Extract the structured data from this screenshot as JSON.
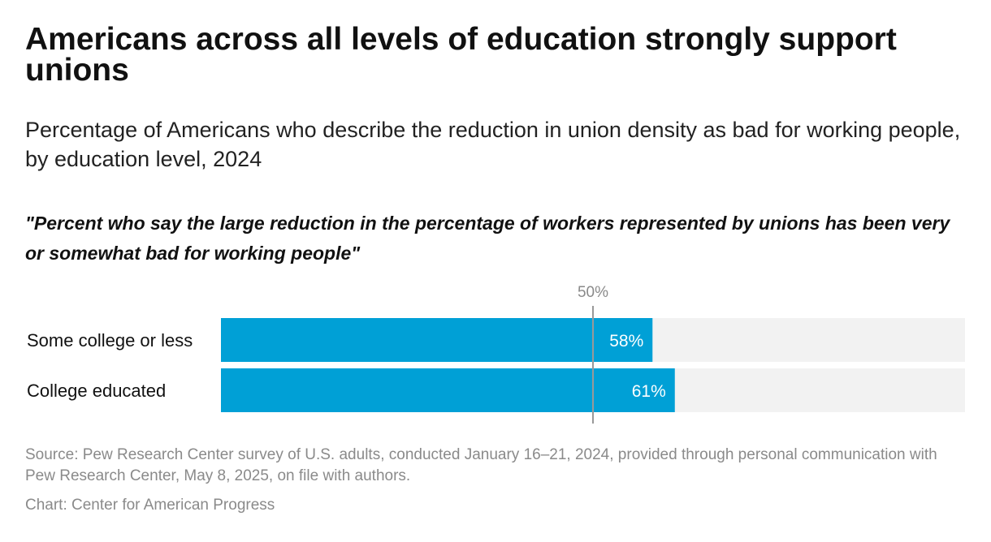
{
  "title": "Americans across all levels of education strongly support unions",
  "subtitle": "Percentage of Americans who describe the reduction in union density as bad for working people, by education level, 2024",
  "question": "\"Percent who say the large reduction in the percentage of workers represented by unions has been very or somewhat bad for working people\"",
  "source": "Source: Pew Research Center survey of U.S. adults, conducted January 16–21, 2024, provided through personal communication with Pew Research Center, May 8, 2025, on file with authors.",
  "credit": "Chart: Center for American Progress",
  "colors": {
    "bar": "#00a0d6",
    "track": "#f2f2f2",
    "reference": "#999999"
  },
  "chart_data": {
    "type": "bar",
    "orientation": "horizontal",
    "categories": [
      "Some college or less",
      "College educated"
    ],
    "values": [
      58,
      61
    ],
    "value_labels": [
      "58%",
      "61%"
    ],
    "xlim": [
      0,
      100
    ],
    "reference_line": {
      "value": 50,
      "label": "50%"
    },
    "title": "\"Percent who say the large reduction in the percentage of workers represented by unions has been very or somewhat bad for working people\"",
    "xlabel": "",
    "ylabel": ""
  }
}
